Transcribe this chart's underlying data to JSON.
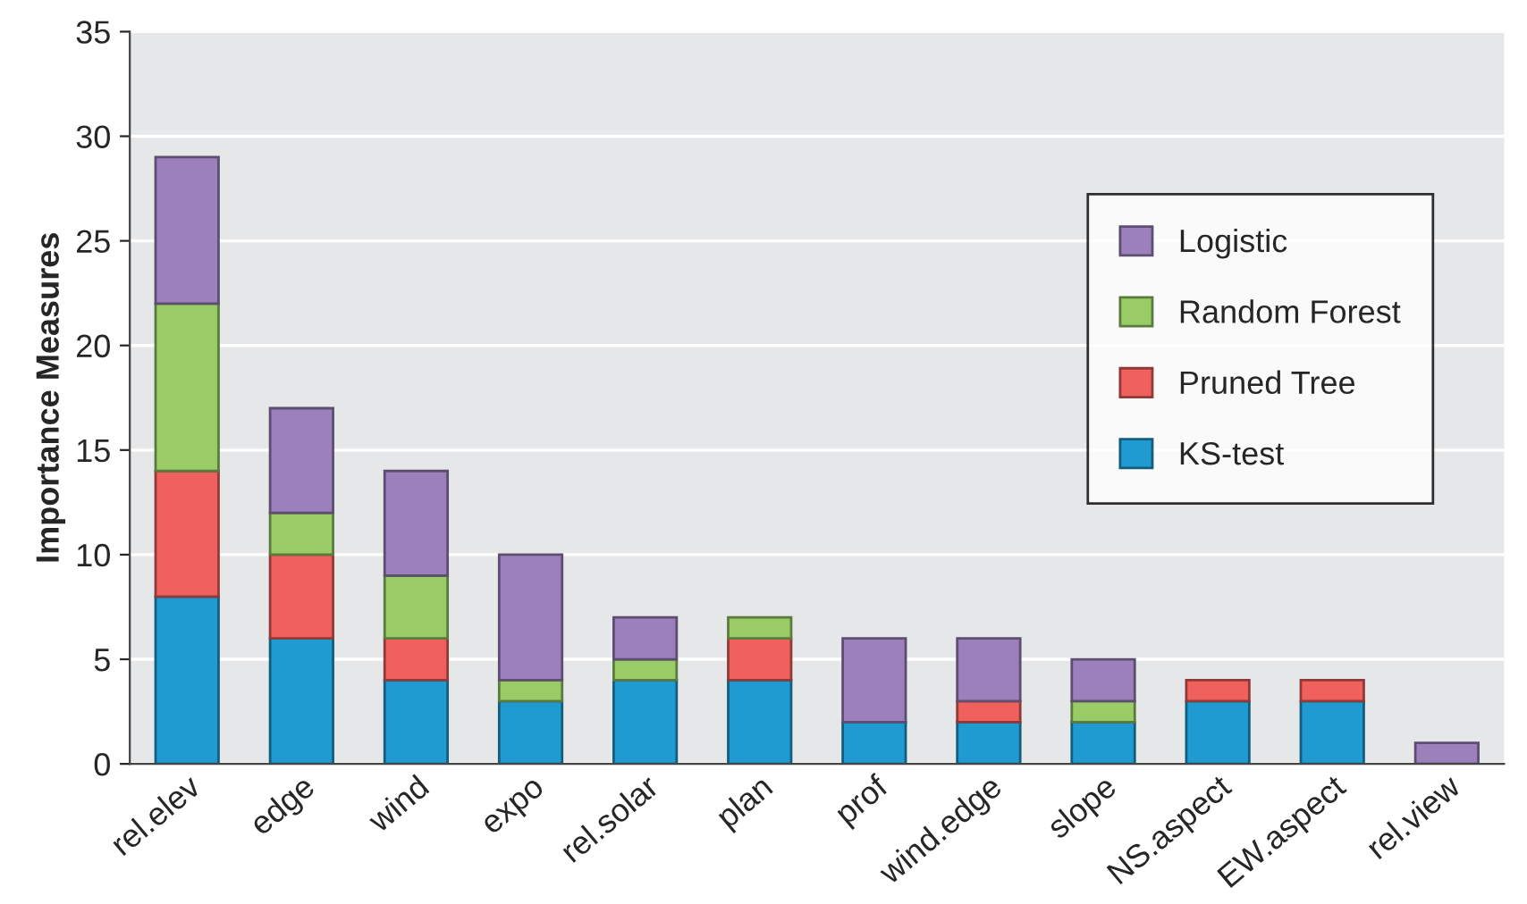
{
  "chart_data": {
    "type": "bar",
    "stacked": true,
    "ylabel": "Importance Measures",
    "categories": [
      "rel.elev",
      "edge",
      "wind",
      "expo",
      "rel.solar",
      "plan",
      "prof",
      "wind.edge",
      "slope",
      "NS.aspect",
      "EW.aspect",
      "rel.view"
    ],
    "series": [
      {
        "name": "KS-test",
        "color": "#1f9bd1",
        "values": [
          8,
          6,
          4,
          3,
          4,
          4,
          2,
          2,
          2,
          3,
          3,
          0
        ]
      },
      {
        "name": "Pruned Tree",
        "color": "#f0605d",
        "values": [
          6,
          4,
          2,
          0,
          0,
          2,
          0,
          1,
          0,
          1,
          1,
          0
        ]
      },
      {
        "name": "Random Forest",
        "color": "#99cc66",
        "values": [
          8,
          2,
          3,
          1,
          1,
          1,
          0,
          0,
          1,
          0,
          0,
          0
        ]
      },
      {
        "name": "Logistic",
        "color": "#9b80bb",
        "values": [
          7,
          5,
          5,
          6,
          2,
          0,
          4,
          3,
          2,
          0,
          0,
          1
        ]
      }
    ],
    "ylim": [
      0,
      35
    ],
    "yticks": [
      0,
      5,
      10,
      15,
      20,
      25,
      30,
      35
    ],
    "grid": "y",
    "legend": "top right"
  }
}
